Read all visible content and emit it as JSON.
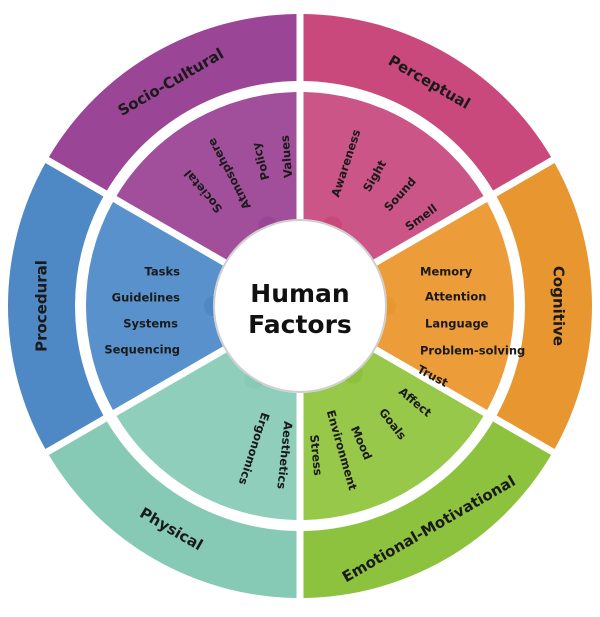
{
  "center": {
    "title_line1": "Human",
    "title_line2": "Factors",
    "ring_color": "#cfcfcf"
  },
  "segments": [
    {
      "id": "socio-cultural",
      "label": "Socio-Cultural",
      "color": "#9b4596",
      "light": "#a14f9b",
      "items": [
        "Values",
        "Policy",
        "Atmosphere",
        "Societal"
      ]
    },
    {
      "id": "perceptual",
      "label": "Perceptual",
      "color": "#c9497d",
      "light": "#cc5587",
      "items": [
        "Awareness",
        "Sight",
        "Sound",
        "Smell"
      ]
    },
    {
      "id": "cognitive",
      "label": "Cognitive",
      "color": "#e8962f",
      "light": "#ec9c38",
      "items": [
        "Memory",
        "Attention",
        "Language",
        "Problem-solving"
      ]
    },
    {
      "id": "emotional-motivational",
      "label": "Emotional-Motivational",
      "color": "#8dc23f",
      "light": "#97c84a",
      "items": [
        "Trust",
        "Affect",
        "Goals",
        "Mood"
      ]
    },
    {
      "id": "physical",
      "label": "Physical",
      "color": "#86c9b4",
      "light": "#8fceba",
      "items": [
        "Ergonomics",
        "Aesthetics",
        "Stress",
        "Environment"
      ]
    },
    {
      "id": "procedural",
      "label": "Procedural",
      "color": "#4e88c5",
      "light": "#5891cb",
      "items": [
        "Tasks",
        "Guidelines",
        "Systems",
        "Sequencing"
      ]
    }
  ]
}
